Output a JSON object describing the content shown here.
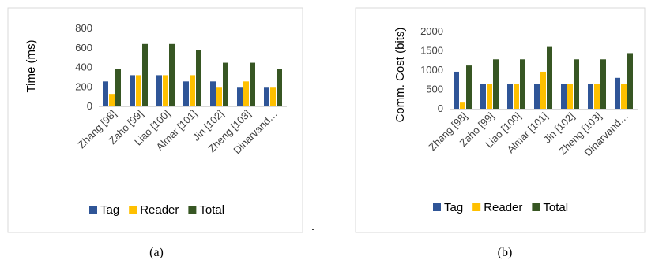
{
  "chart_data": [
    {
      "type": "bar",
      "caption": "(a)",
      "ylabel": "Time (ms)",
      "xlabel": "",
      "ylim": [
        0,
        800
      ],
      "yticks": [
        0,
        200,
        400,
        600,
        800
      ],
      "categories": [
        "Zhang [98]",
        "Zaho [99]",
        "Liao [100]",
        "Almar [101]",
        "Jin [102]",
        "Zheng [103]",
        "Dinarvand…"
      ],
      "series": [
        {
          "name": "Tag",
          "color": "#2f5597",
          "values": [
            256,
            320,
            320,
            256,
            256,
            192,
            192
          ]
        },
        {
          "name": "Reader",
          "color": "#ffc000",
          "values": [
            128,
            320,
            320,
            320,
            192,
            256,
            192
          ]
        },
        {
          "name": "Total",
          "color": "#375623",
          "values": [
            384,
            640,
            640,
            576,
            448,
            448,
            384
          ]
        }
      ],
      "grid": false,
      "legend": "bottom"
    },
    {
      "type": "bar",
      "caption": "(b)",
      "ylabel": "Comm. Cost (bits)",
      "xlabel": "",
      "ylim": [
        0,
        2000
      ],
      "yticks": [
        0,
        500,
        1000,
        1500,
        2000
      ],
      "categories": [
        "Zhang [98]",
        "Zaho [99]",
        "Liao [100]",
        "Almar [101]",
        "Jin [102]",
        "Zheng [103]",
        "Dinarvand…"
      ],
      "series": [
        {
          "name": "Tag",
          "color": "#2f5597",
          "values": [
            960,
            640,
            640,
            640,
            640,
            640,
            800
          ]
        },
        {
          "name": "Reader",
          "color": "#ffc000",
          "values": [
            160,
            640,
            640,
            960,
            640,
            640,
            640
          ]
        },
        {
          "name": "Total",
          "color": "#375623",
          "values": [
            1120,
            1280,
            1280,
            1600,
            1280,
            1280,
            1440
          ]
        }
      ],
      "grid": false,
      "legend": "bottom"
    }
  ],
  "separator_mark": "."
}
